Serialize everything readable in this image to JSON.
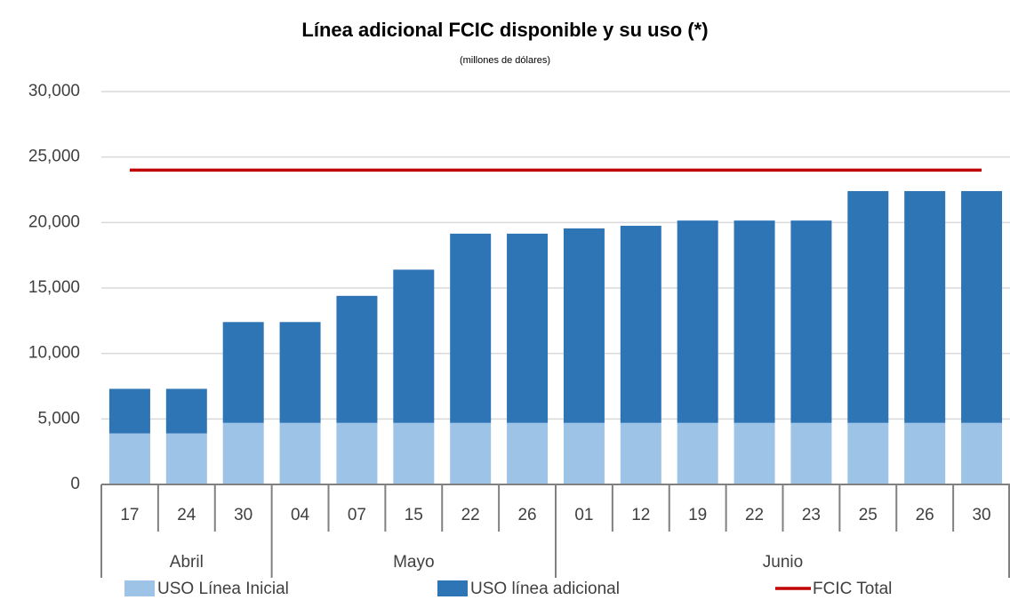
{
  "chart_data": {
    "type": "bar",
    "stacked": true,
    "title": "Línea adicional FCIC disponible y su uso (*)",
    "subtitle": "(millones de dólares)",
    "categories": [
      "17",
      "24",
      "30",
      "04",
      "07",
      "15",
      "22",
      "26",
      "01",
      "12",
      "19",
      "22",
      "23",
      "25",
      "26",
      "30"
    ],
    "x_groups": [
      "Abril",
      "Abril",
      "Abril",
      "Mayo",
      "Mayo",
      "Mayo",
      "Mayo",
      "Mayo",
      "Junio",
      "Junio",
      "Junio",
      "Junio",
      "Junio",
      "Junio",
      "Junio",
      "Junio"
    ],
    "series": [
      {
        "name": "USO Línea Inicial",
        "type": "bar",
        "color": "#9dc3e6",
        "values": [
          3900,
          3900,
          4700,
          4700,
          4700,
          4700,
          4700,
          4700,
          4700,
          4700,
          4700,
          4700,
          4700,
          4700,
          4700,
          4700
        ]
      },
      {
        "name": "USO línea adicional",
        "type": "bar",
        "color": "#2e75b6",
        "values": [
          3400,
          3400,
          7700,
          7700,
          9700,
          11700,
          14450,
          14450,
          14850,
          15050,
          15450,
          15450,
          15450,
          17700,
          17700,
          17700
        ]
      },
      {
        "name": "FCIC Total",
        "type": "line",
        "color": "#c00000",
        "values": [
          24000,
          24000,
          24000,
          24000,
          24000,
          24000,
          24000,
          24000,
          24000,
          24000,
          24000,
          24000,
          24000,
          24000,
          24000,
          24000
        ]
      }
    ],
    "ylim": [
      0,
      30000
    ],
    "yticks": [
      0,
      {
        "value": 5000,
        "label": "5,000"
      },
      {
        "value": 10000,
        "label": "10,000"
      },
      {
        "value": 15000,
        "label": "15,000"
      },
      {
        "value": 20000,
        "label": "20,000"
      },
      {
        "value": 25000,
        "label": "25,000"
      },
      {
        "value": 30000,
        "label": "30,000"
      }
    ],
    "grid": true,
    "legend": "bottom"
  }
}
